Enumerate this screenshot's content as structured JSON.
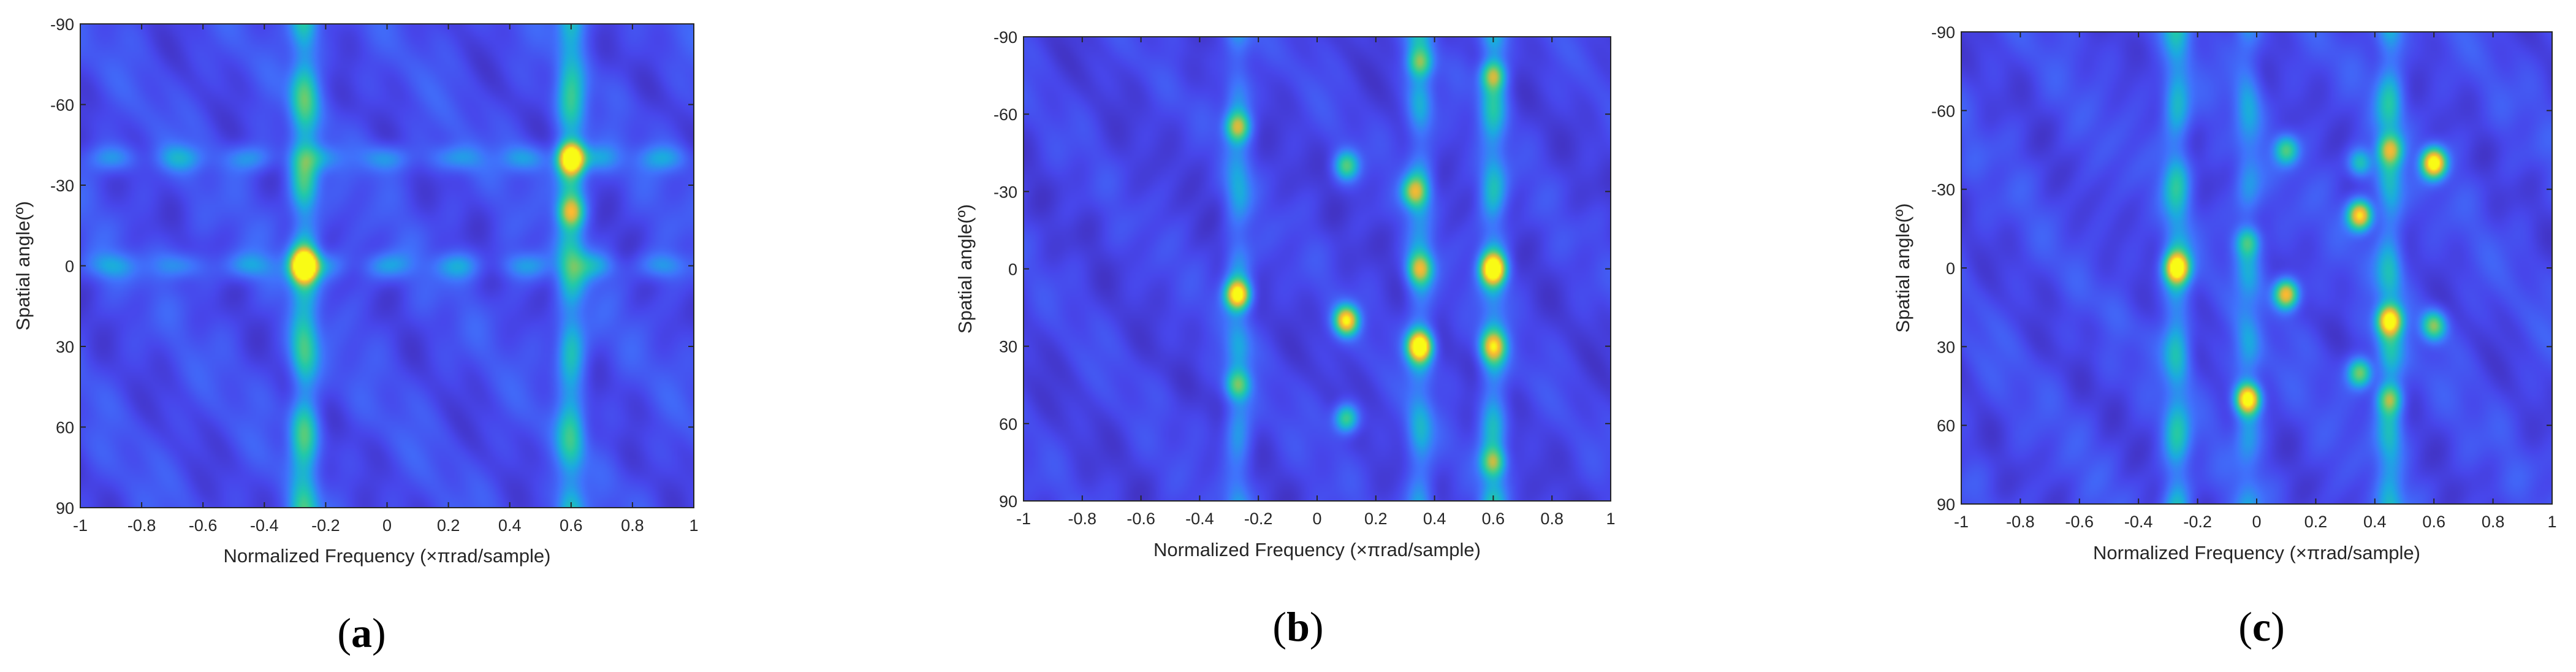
{
  "chart_data": [
    {
      "type": "heatmap",
      "panel_label": "(a)",
      "xlabel": "Normalized Frequency (×πrad/sample)",
      "ylabel": "Spatial angle(º)",
      "xlim": [
        -1,
        1
      ],
      "ylim": [
        -90,
        90
      ],
      "y_reversed": true,
      "x_ticks": [
        "-1",
        "-0.8",
        "-0.6",
        "-0.4",
        "-0.2",
        "0",
        "0.2",
        "0.4",
        "0.6",
        "0.8",
        "1"
      ],
      "y_ticks": [
        "-90",
        "-60",
        "-30",
        "0",
        "30",
        "60",
        "90"
      ],
      "colormap": [
        "#3e26a8",
        "#4746eb",
        "#3f74fc",
        "#1ca9e1",
        "#20c8ab",
        "#5ccd77",
        "#c5bd45",
        "#fdb931",
        "#f9fb15"
      ],
      "background_level": 0.18,
      "ridges_vertical": [
        {
          "x": -0.27,
          "level": 0.45
        },
        {
          "x": 0.6,
          "level": 0.38
        }
      ],
      "ridges_horizontal": [
        {
          "y": 0,
          "level": 0.22
        },
        {
          "y": -40,
          "level": 0.22
        }
      ],
      "peaks": [
        {
          "x": -0.27,
          "y": 0,
          "level": 1.0
        },
        {
          "x": 0.6,
          "y": -40,
          "level": 1.0
        },
        {
          "x": 0.6,
          "y": -20,
          "level": 0.5
        }
      ]
    },
    {
      "type": "heatmap",
      "panel_label": "(b)",
      "xlabel": "Normalized Frequency (×πrad/sample)",
      "ylabel": "Spatial angle(º)",
      "xlim": [
        -1,
        1
      ],
      "ylim": [
        -90,
        90
      ],
      "y_reversed": true,
      "x_ticks": [
        "-1",
        "-0.8",
        "-0.6",
        "-0.4",
        "-0.2",
        "0",
        "0.2",
        "0.4",
        "0.6",
        "0.8",
        "1"
      ],
      "y_ticks": [
        "-90",
        "-60",
        "-30",
        "0",
        "30",
        "60",
        "90"
      ],
      "colormap": [
        "#3e26a8",
        "#4746eb",
        "#3f74fc",
        "#1ca9e1",
        "#20c8ab",
        "#5ccd77",
        "#c5bd45",
        "#fdb931",
        "#f9fb15"
      ],
      "background_level": 0.15,
      "ridges_vertical": [
        {
          "x": -0.27,
          "level": 0.25
        },
        {
          "x": 0.35,
          "level": 0.3
        },
        {
          "x": 0.6,
          "level": 0.35
        }
      ],
      "ridges_horizontal": [],
      "peaks": [
        {
          "x": -0.27,
          "y": 10,
          "level": 0.9
        },
        {
          "x": 0.1,
          "y": 20,
          "level": 0.85
        },
        {
          "x": 0.35,
          "y": 30,
          "level": 0.9
        },
        {
          "x": 0.6,
          "y": 0,
          "level": 0.9
        },
        {
          "x": -0.27,
          "y": -55,
          "level": 0.5
        },
        {
          "x": 0.1,
          "y": -40,
          "level": 0.45
        },
        {
          "x": 0.33,
          "y": -30,
          "level": 0.45
        },
        {
          "x": 0.1,
          "y": 58,
          "level": 0.5
        },
        {
          "x": 0.6,
          "y": -75,
          "level": 0.5
        },
        {
          "x": 0.6,
          "y": 30,
          "level": 0.5
        },
        {
          "x": 0.6,
          "y": 75,
          "level": 0.45
        },
        {
          "x": 0.35,
          "y": -80,
          "level": 0.4
        },
        {
          "x": -0.27,
          "y": 45,
          "level": 0.4
        },
        {
          "x": 0.35,
          "y": 0,
          "level": 0.45
        }
      ]
    },
    {
      "type": "heatmap",
      "panel_label": "(c)",
      "xlabel": "Normalized Frequency (×πrad/sample)",
      "ylabel": "Spatial angle(º)",
      "xlim": [
        -1,
        1
      ],
      "ylim": [
        -90,
        90
      ],
      "y_reversed": true,
      "x_ticks": [
        "-1",
        "-0.8",
        "-0.6",
        "-0.4",
        "-0.2",
        "0",
        "0.2",
        "0.4",
        "0.6",
        "0.8",
        "1"
      ],
      "y_ticks": [
        "-90",
        "-60",
        "-30",
        "0",
        "30",
        "60",
        "90"
      ],
      "colormap": [
        "#3e26a8",
        "#4746eb",
        "#3f74fc",
        "#1ca9e1",
        "#20c8ab",
        "#5ccd77",
        "#c5bd45",
        "#fdb931",
        "#f9fb15"
      ],
      "background_level": 0.17,
      "ridges_vertical": [
        {
          "x": -0.27,
          "level": 0.35
        },
        {
          "x": 0.45,
          "level": 0.33
        },
        {
          "x": -0.03,
          "level": 0.22
        }
      ],
      "ridges_horizontal": [],
      "peaks": [
        {
          "x": 0.6,
          "y": -40,
          "level": 1.0
        },
        {
          "x": -0.03,
          "y": 50,
          "level": 0.95
        },
        {
          "x": 0.35,
          "y": -20,
          "level": 0.85
        },
        {
          "x": 0.45,
          "y": 20,
          "level": 0.85
        },
        {
          "x": 0.1,
          "y": 10,
          "level": 0.8
        },
        {
          "x": -0.27,
          "y": 0,
          "level": 0.8
        },
        {
          "x": 0.6,
          "y": 22,
          "level": 0.55
        },
        {
          "x": 0.35,
          "y": 40,
          "level": 0.55
        },
        {
          "x": 0.45,
          "y": -45,
          "level": 0.5
        },
        {
          "x": 0.1,
          "y": -45,
          "level": 0.45
        },
        {
          "x": 0.45,
          "y": 50,
          "level": 0.45
        },
        {
          "x": -0.03,
          "y": -10,
          "level": 0.35
        },
        {
          "x": 0.35,
          "y": -40,
          "level": 0.4
        }
      ]
    }
  ]
}
